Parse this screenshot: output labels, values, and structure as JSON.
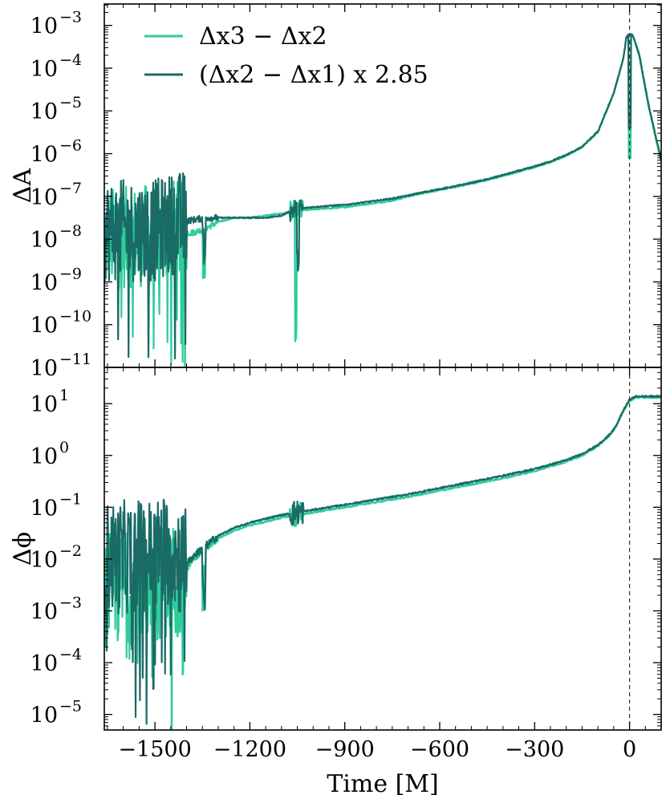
{
  "chart_data": [
    {
      "type": "line",
      "panel": "top",
      "ylabel": "ΔA",
      "yscale": "log",
      "xlim": [
        -1660,
        100
      ],
      "ylim_exp": [
        -11,
        -2.5
      ],
      "ytick_exponents": [
        -11,
        -10,
        -9,
        -8,
        -7,
        -6,
        -5,
        -4,
        -3
      ],
      "ytick_base": "10",
      "ytick_labels": [
        "−11",
        "−10",
        "−9",
        "−8",
        "−7",
        "−6",
        "−5",
        "−4",
        "−3"
      ],
      "vline_x": 0,
      "legend": {
        "placement": "top-left",
        "entries": [
          "Δx3 − Δx2",
          "(Δx2 − Δx1) x 2.85"
        ]
      },
      "series": [
        {
          "name": "Δx3 − Δx2",
          "color": "#2ecc9a",
          "x": [
            -1660,
            -1500,
            -1450,
            -1420,
            -1380,
            -1340,
            -1300,
            -1250,
            -1200,
            -1150,
            -1100,
            -1060,
            -1000,
            -950,
            -900,
            -850,
            -800,
            -750,
            -700,
            -650,
            -600,
            -550,
            -500,
            -450,
            -400,
            -350,
            -300,
            -250,
            -200,
            -150,
            -100,
            -50,
            -20,
            -10,
            0,
            10,
            30,
            60,
            100
          ],
          "log10_y": [
            -8.0,
            -7.9,
            -7.75,
            -7.85,
            -7.85,
            -7.75,
            -7.6,
            -7.5,
            -7.5,
            -7.45,
            -7.4,
            -7.35,
            -7.3,
            -7.28,
            -7.25,
            -7.2,
            -7.15,
            -7.1,
            -7.0,
            -6.92,
            -6.85,
            -6.78,
            -6.7,
            -6.62,
            -6.52,
            -6.42,
            -6.32,
            -6.2,
            -6.05,
            -5.85,
            -5.5,
            -4.6,
            -3.8,
            -3.3,
            -3.2,
            -3.25,
            -3.7,
            -4.9,
            -6.2
          ]
        },
        {
          "name": "(Δx2 − Δx1) x 2.85",
          "color": "#1a6b66",
          "x": [
            -1660,
            -1500,
            -1450,
            -1420,
            -1380,
            -1340,
            -1300,
            -1250,
            -1200,
            -1150,
            -1100,
            -1060,
            -1000,
            -950,
            -900,
            -850,
            -800,
            -750,
            -700,
            -650,
            -600,
            -550,
            -500,
            -450,
            -400,
            -350,
            -300,
            -250,
            -200,
            -150,
            -100,
            -50,
            -20,
            -10,
            0,
            10,
            30,
            60,
            100
          ],
          "log10_y": [
            -7.8,
            -7.8,
            -7.65,
            -7.6,
            -7.55,
            -7.5,
            -7.5,
            -7.5,
            -7.5,
            -7.5,
            -7.45,
            -7.3,
            -7.25,
            -7.22,
            -7.2,
            -7.15,
            -7.1,
            -7.05,
            -6.98,
            -6.9,
            -6.83,
            -6.76,
            -6.68,
            -6.6,
            -6.5,
            -6.4,
            -6.3,
            -6.18,
            -6.03,
            -5.84,
            -5.48,
            -4.58,
            -3.78,
            -3.28,
            -3.18,
            -3.22,
            -3.65,
            -4.85,
            -6.15
          ]
        }
      ]
    },
    {
      "type": "line",
      "panel": "bottom",
      "ylabel": "Δϕ",
      "xlabel": "Time [M]",
      "yscale": "log",
      "xlim": [
        -1660,
        100
      ],
      "ylim_exp": [
        -5.3,
        1.7
      ],
      "ytick_exponents": [
        -5,
        -4,
        -3,
        -2,
        -1,
        0,
        1
      ],
      "ytick_base": "10",
      "ytick_labels": [
        "−5",
        "−4",
        "−3",
        "−2",
        "−1",
        "0",
        "1"
      ],
      "xticks": [
        -1500,
        -1200,
        -900,
        -600,
        -300,
        0
      ],
      "xtick_labels": [
        "−1500",
        "−1200",
        "−900",
        "−600",
        "−300",
        "0"
      ],
      "vline_x": 0,
      "series": [
        {
          "name": "Δx3 − Δx2",
          "color": "#2ecc9a",
          "x": [
            -1660,
            -1500,
            -1450,
            -1420,
            -1400,
            -1380,
            -1350,
            -1300,
            -1250,
            -1200,
            -1150,
            -1100,
            -1050,
            -1000,
            -950,
            -900,
            -800,
            -700,
            -600,
            -500,
            -400,
            -300,
            -200,
            -150,
            -100,
            -60,
            -40,
            -20,
            0,
            20,
            50,
            100
          ],
          "log10_y": [
            -2.6,
            -2.5,
            -2.4,
            -2.4,
            -2.2,
            -2.0,
            -1.85,
            -1.6,
            -1.45,
            -1.35,
            -1.28,
            -1.2,
            -1.15,
            -1.1,
            -1.05,
            -1.0,
            -0.9,
            -0.8,
            -0.68,
            -0.56,
            -0.44,
            -0.3,
            -0.12,
            0.0,
            0.18,
            0.4,
            0.58,
            0.85,
            1.05,
            1.12,
            1.12,
            1.12
          ]
        },
        {
          "name": "(Δx2 − Δx1) x 2.85",
          "color": "#1a6b66",
          "x": [
            -1660,
            -1500,
            -1450,
            -1420,
            -1400,
            -1380,
            -1350,
            -1300,
            -1250,
            -1200,
            -1150,
            -1100,
            -1050,
            -1000,
            -950,
            -900,
            -800,
            -700,
            -600,
            -500,
            -400,
            -300,
            -200,
            -150,
            -100,
            -60,
            -40,
            -20,
            0,
            20,
            50,
            100
          ],
          "log10_y": [
            -2.0,
            -1.9,
            -1.8,
            -2.0,
            -2.1,
            -1.95,
            -1.8,
            -1.55,
            -1.4,
            -1.3,
            -1.22,
            -1.15,
            -1.1,
            -1.05,
            -1.0,
            -0.95,
            -0.85,
            -0.75,
            -0.63,
            -0.51,
            -0.39,
            -0.26,
            -0.09,
            0.03,
            0.2,
            0.42,
            0.6,
            0.87,
            1.08,
            1.14,
            1.14,
            1.14
          ]
        }
      ]
    }
  ]
}
